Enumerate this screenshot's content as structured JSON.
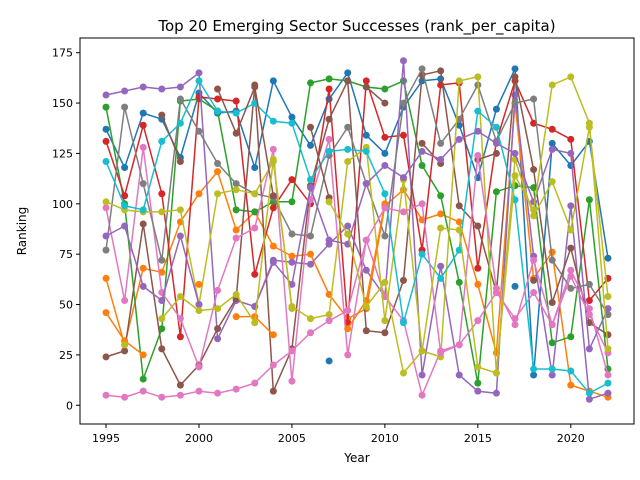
{
  "chart_data": {
    "type": "line",
    "title": "Top 20 Emerging Sector Successes (rank_per_capita)",
    "xlabel": "Year",
    "ylabel": "Ranking",
    "xlim": [
      1993.6,
      2023.4
    ],
    "ylim": [
      -9.3,
      182.3
    ],
    "xticks": [
      1995,
      2000,
      2005,
      2010,
      2015,
      2020
    ],
    "yticks": [
      0,
      25,
      50,
      75,
      100,
      125,
      150,
      175
    ],
    "grid": false,
    "legend": "none",
    "x": [
      1995,
      1996,
      1997,
      1998,
      1999,
      2000,
      2001,
      2002,
      2003,
      2004,
      2005,
      2006,
      2007,
      2008,
      2009,
      2010,
      2011,
      2012,
      2013,
      2014,
      2015,
      2016,
      2017,
      2018,
      2019,
      2020,
      2021,
      2022
    ],
    "series": [
      {
        "color": "#1f77b4",
        "values": [
          137,
          118,
          145,
          142,
          123,
          155,
          145,
          146,
          118,
          161,
          143,
          129,
          152,
          165,
          134,
          125,
          148,
          161,
          162,
          139,
          113,
          147,
          167,
          15,
          130,
          119,
          131,
          73
        ]
      },
      {
        "color": "#ff7f0e",
        "values": [
          63,
          30,
          68,
          66,
          91,
          105,
          116,
          87,
          96,
          79,
          74,
          75,
          55,
          43,
          48,
          99,
          107,
          92,
          95,
          91,
          60,
          26,
          150,
          63,
          76,
          10,
          7,
          4
        ]
      },
      {
        "color": "#2ca02c",
        "values": [
          148,
          100,
          13,
          38,
          151,
          152,
          146,
          97,
          96,
          101,
          101,
          160,
          162,
          161,
          158,
          157,
          161,
          119,
          104,
          61,
          11,
          106,
          109,
          108,
          31,
          34,
          102,
          18
        ]
      },
      {
        "color": "#d62728",
        "values": [
          131,
          104,
          139,
          105,
          34,
          153,
          152,
          151,
          65,
          98,
          112,
          100,
          157,
          41,
          161,
          133,
          134,
          77,
          159,
          160,
          68,
          131,
          161,
          140,
          137,
          132,
          52,
          63
        ]
      },
      {
        "color": "#9467bd",
        "values": [
          154,
          156,
          158,
          157,
          158,
          165,
          33,
          52,
          49,
          72,
          71,
          70,
          80,
          89,
          67,
          54,
          171,
          15,
          69,
          15,
          7,
          6,
          154,
          74,
          15,
          99,
          3,
          6
        ]
      },
      {
        "color": "#8c564b",
        "values": [
          24,
          27,
          90,
          28,
          10,
          20,
          38,
          53,
          159,
          7,
          28,
          109,
          142,
          161,
          37,
          36,
          62,
          164,
          166,
          99,
          89,
          56,
          163,
          117,
          51,
          78,
          41,
          35
        ]
      },
      {
        "color": "#e377c2",
        "values": [
          98,
          52,
          128,
          56,
          43,
          19,
          57,
          83,
          88,
          127,
          12,
          102,
          132,
          25,
          82,
          54,
          42,
          5,
          27,
          30,
          42,
          56,
          43,
          56,
          40,
          67,
          48,
          15
        ]
      },
      {
        "color": "#7f7f7f",
        "values": [
          77,
          148,
          110,
          72,
          152,
          136,
          120,
          110,
          105,
          103,
          85,
          84,
          124,
          138,
          110,
          84,
          150,
          167,
          130,
          142,
          159,
          131,
          150,
          152,
          72,
          58,
          60,
          45
        ]
      },
      {
        "color": "#bcbd22",
        "values": [
          101,
          97,
          96,
          96,
          97,
          50,
          105,
          107,
          105,
          121,
          49,
          43,
          45,
          121,
          128,
          42,
          112,
          27,
          24,
          161,
          163,
          16,
          122,
          94,
          111,
          87,
          138,
          54
        ]
      },
      {
        "color": "#17becf",
        "values": [
          121,
          99,
          97,
          131,
          140,
          161,
          146,
          145,
          150,
          141,
          140,
          112,
          126,
          127,
          126,
          105,
          41,
          75,
          63,
          77,
          146,
          138,
          102,
          18,
          18,
          17,
          6,
          11
        ]
      },
      {
        "color": "#1f77b4",
        "values": [
          null,
          null,
          null,
          null,
          null,
          null,
          null,
          null,
          null,
          null,
          null,
          null,
          22,
          null,
          null,
          null,
          null,
          null,
          null,
          null,
          null,
          null,
          59,
          null,
          null,
          null,
          null,
          null
        ]
      },
      {
        "color": "#ff7f0e",
        "values": [
          46,
          32,
          25,
          null,
          null,
          60,
          null,
          44,
          44,
          35,
          null,
          null,
          null,
          38,
          52,
          100,
          null,
          null,
          null,
          null,
          null,
          null,
          null,
          null,
          null,
          null,
          null,
          null
        ]
      },
      {
        "color": "#8c564b",
        "values": [
          null,
          null,
          null,
          144,
          121,
          null,
          157,
          135,
          158,
          104,
          null,
          138,
          103,
          null,
          158,
          150,
          null,
          130,
          120,
          null,
          122,
          125,
          null,
          62,
          null,
          null,
          null,
          null
        ]
      },
      {
        "color": "#9467bd",
        "values": [
          84,
          89,
          59,
          52,
          84,
          50,
          null,
          null,
          49,
          71,
          60,
          108,
          82,
          80,
          110,
          119,
          113,
          126,
          122,
          132,
          136,
          130,
          125,
          101,
          127,
          125,
          28,
          48
        ]
      },
      {
        "color": "#e377c2",
        "values": [
          5,
          4,
          7,
          4,
          5,
          7,
          6,
          8,
          11,
          20,
          27,
          36,
          42,
          47,
          82,
          98,
          96,
          100,
          26,
          30,
          124,
          58,
          40,
          72,
          40,
          64,
          45,
          26
        ]
      },
      {
        "color": "#bcbd22",
        "values": [
          null,
          30,
          null,
          43,
          54,
          47,
          48,
          55,
          41,
          122,
          48,
          null,
          101,
          85,
          49,
          61,
          16,
          27,
          88,
          87,
          19,
          16,
          114,
          97,
          159,
          163,
          140,
          28
        ]
      }
    ]
  }
}
